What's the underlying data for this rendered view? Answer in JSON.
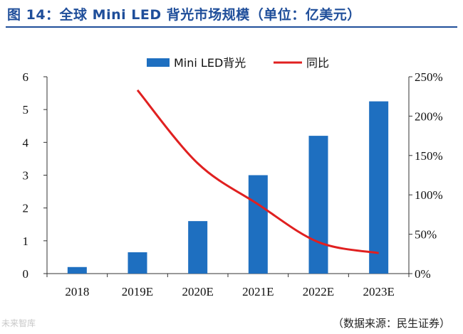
{
  "figure_title": "图 14：全球 Mini LED 背光市场规模（单位：亿美元）",
  "source_note": "（数据来源：民生证券）",
  "watermark": "未来智库",
  "chart_data": {
    "type": "bar",
    "categories": [
      "2018",
      "2019E",
      "2020E",
      "2021E",
      "2022E",
      "2023E"
    ],
    "series": [
      {
        "name": "Mini LED背光",
        "type": "bar",
        "axis": "left",
        "color": "#1e6fc0",
        "values": [
          0.2,
          0.65,
          1.6,
          3.0,
          4.2,
          5.25
        ]
      },
      {
        "name": "同比",
        "type": "line",
        "axis": "right",
        "color": "#e02020",
        "values": [
          null,
          2.33,
          1.4,
          0.88,
          0.4,
          0.26
        ]
      }
    ],
    "left_axis": {
      "min": 0,
      "max": 6,
      "ticks": [
        0,
        1,
        2,
        3,
        4,
        5,
        6
      ]
    },
    "right_axis": {
      "min": 0,
      "max": 2.5,
      "ticks": [
        0,
        0.5,
        1,
        1.5,
        2,
        2.5
      ],
      "tick_labels": [
        "0%",
        "50%",
        "100%",
        "150%",
        "200%",
        "250%"
      ]
    },
    "legend": "top-center",
    "grid": false
  }
}
